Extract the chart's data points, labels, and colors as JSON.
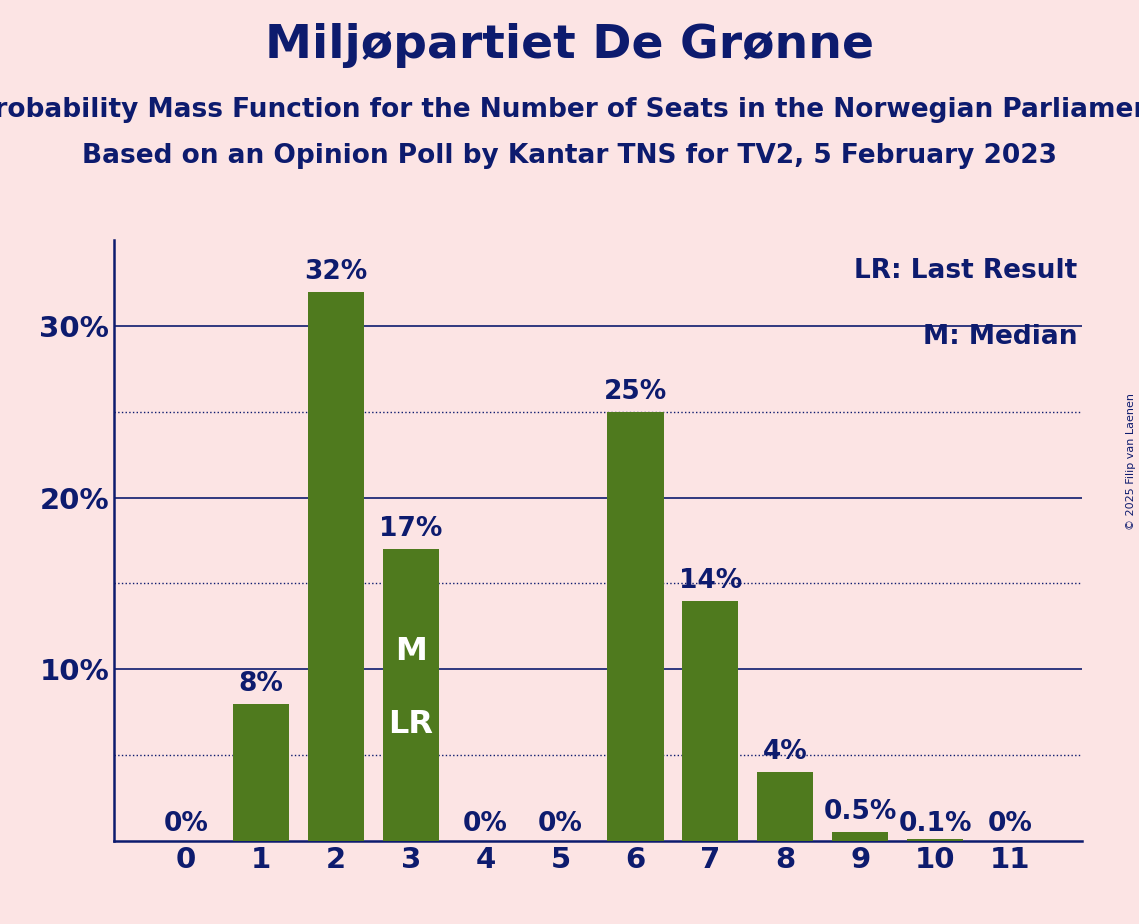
{
  "title": "Miljøpartiet De Grønne",
  "subtitle1": "Probability Mass Function for the Number of Seats in the Norwegian Parliament",
  "subtitle2": "Based on an Opinion Poll by Kantar TNS for TV2, 5 February 2023",
  "copyright": "© 2025 Filip van Laenen",
  "categories": [
    0,
    1,
    2,
    3,
    4,
    5,
    6,
    7,
    8,
    9,
    10,
    11
  ],
  "values": [
    0.0,
    8.0,
    32.0,
    17.0,
    0.0,
    0.0,
    25.0,
    14.0,
    4.0,
    0.5,
    0.1,
    0.0
  ],
  "bar_color": "#4f7a1e",
  "background_color": "#fce4e4",
  "text_color": "#0d1b6e",
  "bar_labels": [
    "0%",
    "8%",
    "32%",
    "17%",
    "0%",
    "0%",
    "25%",
    "14%",
    "4%",
    "0.5%",
    "0.1%",
    "0%"
  ],
  "ylim": [
    0,
    35
  ],
  "yticks": [
    0,
    10,
    20,
    30
  ],
  "ytick_labels": [
    "",
    "10%",
    "20%",
    "30%"
  ],
  "dotted_lines": [
    5,
    15,
    25
  ],
  "solid_lines": [
    10,
    20,
    30
  ],
  "median_bar_idx": 3,
  "lr_bar_idx": 3,
  "legend_lr": "LR: Last Result",
  "legend_m": "M: Median",
  "title_fontsize": 34,
  "subtitle_fontsize": 19,
  "bar_label_fontsize": 19,
  "axis_label_fontsize": 21,
  "legend_fontsize": 19,
  "ml_fontsize": 23
}
